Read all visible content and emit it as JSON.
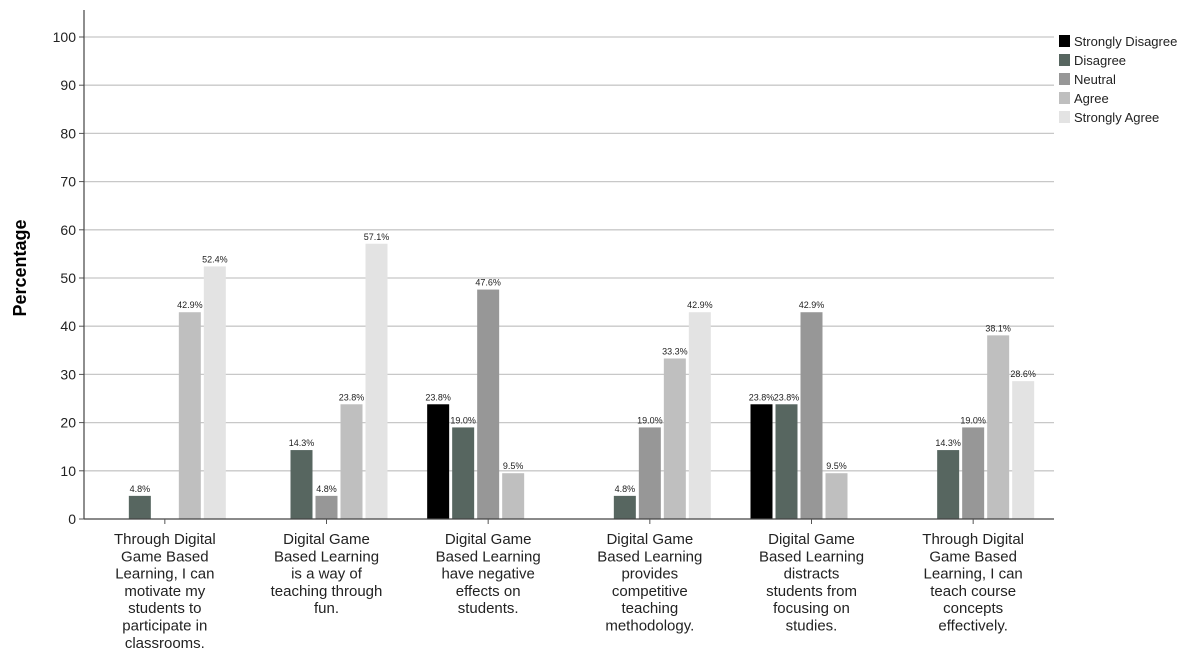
{
  "chart_data": {
    "type": "bar",
    "ylabel": "Percentage",
    "xlabel": "",
    "ylim": [
      0,
      100
    ],
    "yticks": [
      0,
      10,
      20,
      30,
      40,
      50,
      60,
      70,
      80,
      90,
      100
    ],
    "grid": true,
    "legend_position": "top-right",
    "categories": [
      [
        "Through Digital",
        "Game Based",
        "Learning, I can",
        "motivate my",
        "students to",
        "participate in",
        "classrooms."
      ],
      [
        "Digital Game",
        "Based Learning",
        "is a way of",
        "teaching through",
        "fun."
      ],
      [
        "Digital Game",
        "Based Learning",
        "have negative",
        "effects on",
        "students."
      ],
      [
        "Digital Game",
        "Based Learning",
        "provides",
        "competitive",
        "teaching",
        "methodology."
      ],
      [
        "Digital Game",
        "Based Learning",
        "distracts",
        "students from",
        "focusing on",
        "studies."
      ],
      [
        "Through Digital",
        "Game Based",
        "Learning, I can",
        "teach course",
        "concepts",
        "effectively."
      ]
    ],
    "series": [
      {
        "name": "Strongly Disagree",
        "color": "#000000",
        "values": [
          null,
          null,
          23.8,
          null,
          23.8,
          null
        ],
        "labels": [
          "",
          "",
          "23.8%",
          "",
          "23.8%",
          ""
        ]
      },
      {
        "name": "Disagree",
        "color": "#576660",
        "values": [
          4.8,
          14.3,
          19.0,
          4.8,
          23.8,
          14.3
        ],
        "labels": [
          "4.8%",
          "14.3%",
          "19.0%",
          "4.8%",
          "23.8%",
          "14.3%"
        ]
      },
      {
        "name": "Neutral",
        "color": "#979797",
        "values": [
          null,
          4.8,
          47.6,
          19.0,
          42.9,
          19.0
        ],
        "labels": [
          "",
          "4.8%",
          "47.6%",
          "19.0%",
          "42.9%",
          "19.0%"
        ]
      },
      {
        "name": "Agree",
        "color": "#bfbfbf",
        "values": [
          42.9,
          23.8,
          9.5,
          33.3,
          9.5,
          38.1
        ],
        "labels": [
          "42.9%",
          "23.8%",
          "9.5%",
          "33.3%",
          "9.5%",
          "38.1%"
        ]
      },
      {
        "name": "Strongly Agree",
        "color": "#e3e3e3",
        "values": [
          52.4,
          57.1,
          null,
          42.9,
          null,
          28.6
        ],
        "labels": [
          "52.4%",
          "57.1%",
          "",
          "42.9%",
          "",
          "28.6%"
        ]
      }
    ]
  }
}
